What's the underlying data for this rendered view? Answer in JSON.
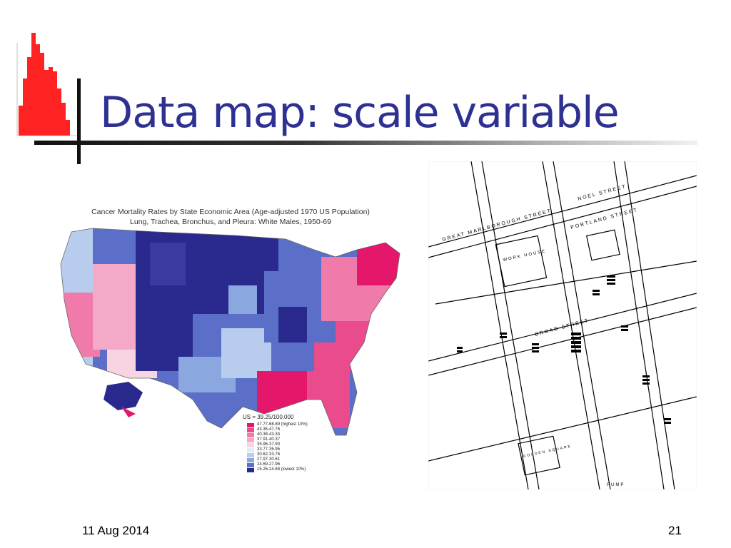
{
  "slide": {
    "title": "Data map: scale variable",
    "date": "11 Aug 2014",
    "page_number": "21",
    "title_color": "#2e3192"
  },
  "left_map": {
    "title_line1": "Cancer Mortality Rates by State Economic Area (Age-adjusted 1970 US Population)",
    "title_line2": "Lung, Trachea, Bronchus, and Pleura:  White Males, 1950-69",
    "legend_title": "US = 39.25/100,000",
    "legend": [
      {
        "label": "47.77-68.89 (highest 10%)",
        "color": "#e5176b"
      },
      {
        "label": "43.35-47.76",
        "color": "#ea4b8c"
      },
      {
        "label": "40.38-43.34",
        "color": "#f07aaa"
      },
      {
        "label": "37.91-40.37",
        "color": "#f5a9c8"
      },
      {
        "label": "35.96-37.90",
        "color": "#f8d3e1"
      },
      {
        "label": "33.77-35.95",
        "color": "#e3ecf8"
      },
      {
        "label": "30.62-33.76",
        "color": "#b8cdee"
      },
      {
        "label": "27.97-30.61",
        "color": "#8aa7e0"
      },
      {
        "label": "24.69-27.96",
        "color": "#5b6fc9"
      },
      {
        "label": "15.26-24.68 (lowest 10%)",
        "color": "#2a2a8e"
      }
    ]
  },
  "right_map": {
    "street_labels": [
      "GREAT MARLBOROUGH STREET",
      "BROAD STREET",
      "WORK HOUSE",
      "GOLDEN SQUARE",
      "NOEL STREET",
      "PORTLAND STREET",
      "PUMP"
    ]
  }
}
